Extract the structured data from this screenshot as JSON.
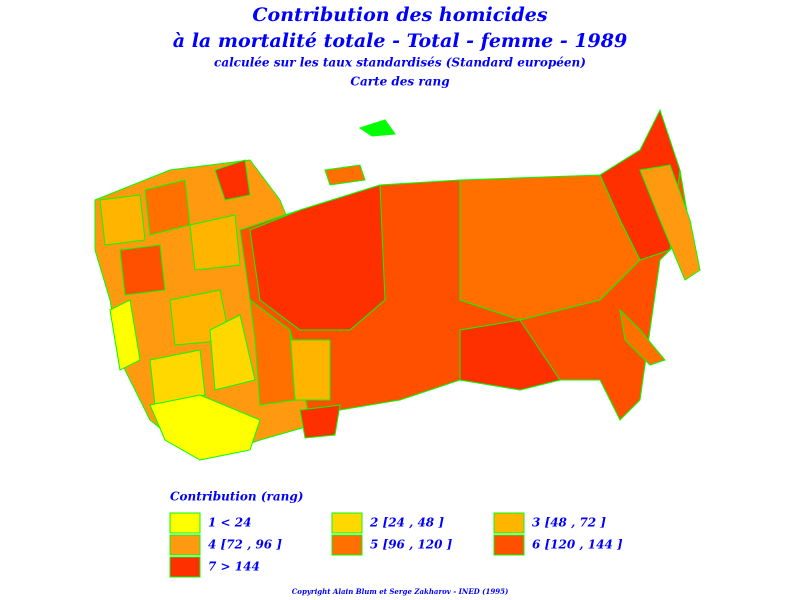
{
  "header": {
    "title_lines": [
      "Contribution des homicides",
      "à la mortalité totale - Total - femme - 1989",
      "calculée sur les taux standardisés (Standard européen)",
      "Carte des rang"
    ]
  },
  "legend": {
    "title": "Contribution (rang)",
    "items": [
      {
        "label": "1 < 24",
        "color": "#ffff00"
      },
      {
        "label": "2 [24 , 48 ]",
        "color": "#ffd800"
      },
      {
        "label": "3 [48 , 72 ]",
        "color": "#ffb400"
      },
      {
        "label": "4 [72 , 96 ]",
        "color": "#ff9a10"
      },
      {
        "label": "5 [96 , 120 ]",
        "color": "#ff7000"
      },
      {
        "label": "6 [120 , 144 ]",
        "color": "#ff5000"
      },
      {
        "label": "7 > 144",
        "color": "#ff3000"
      }
    ]
  },
  "footer": {
    "copyright": "Copyright Alain Blum et Serge Zakharov - INED (1995)"
  }
}
